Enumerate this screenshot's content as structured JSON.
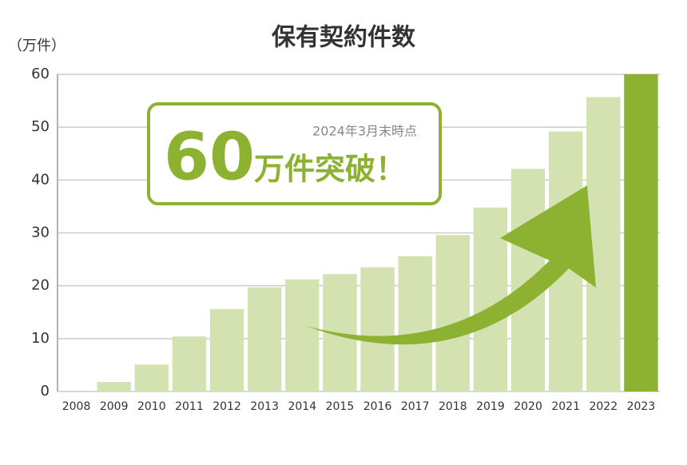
{
  "chart_data": {
    "type": "bar",
    "title": "保有契約件数",
    "y_label": "（万件）",
    "categories": [
      "2008",
      "2009",
      "2010",
      "2011",
      "2012",
      "2013",
      "2014",
      "2015",
      "2016",
      "2017",
      "2018",
      "2019",
      "2020",
      "2021",
      "2022",
      "2023"
    ],
    "values": [
      0,
      1.8,
      5.1,
      10.4,
      15.6,
      19.7,
      21.2,
      22.2,
      23.5,
      25.6,
      29.6,
      34.8,
      42.1,
      49.2,
      55.7,
      60
    ],
    "colors": [
      "#d3e2b0",
      "#d3e2b0",
      "#d3e2b0",
      "#d3e2b0",
      "#d3e2b0",
      "#d3e2b0",
      "#d3e2b0",
      "#d3e2b0",
      "#d3e2b0",
      "#d3e2b0",
      "#d3e2b0",
      "#d3e2b0",
      "#d3e2b0",
      "#d3e2b0",
      "#d3e2b0",
      "#8db232"
    ],
    "ylim": [
      0,
      60
    ],
    "yticks": [
      0,
      10,
      20,
      30,
      40,
      50,
      60
    ],
    "grid": true,
    "annotation": {
      "note": "2024年3月末時点",
      "number": "60",
      "text": "万件突破！"
    }
  }
}
